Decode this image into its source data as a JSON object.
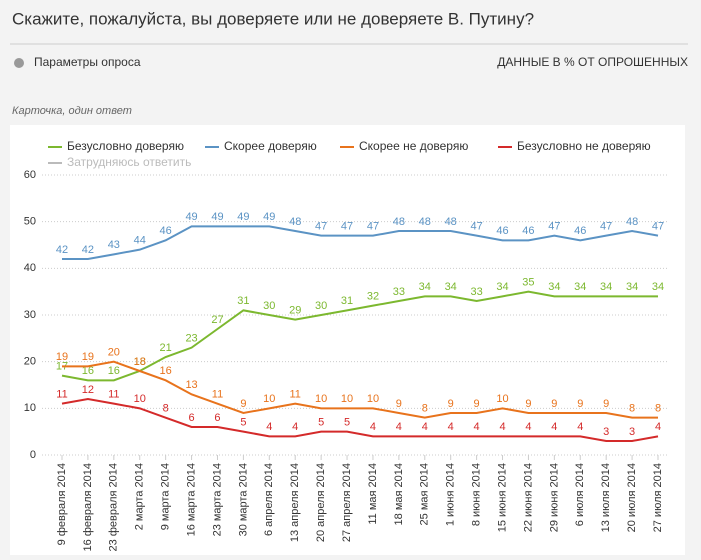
{
  "header": {
    "title": "Скажите, пожалуйста, вы доверяете или не доверяете В. Путину?",
    "params": "Параметры опроса",
    "units": "ДАННЫЕ В % ОТ ОПРОШЕННЫХ",
    "note": "Карточка, один ответ"
  },
  "chart_data": {
    "type": "line",
    "categories": [
      "9 февраля 2014",
      "16 февраля 2014",
      "23 февраля 2014",
      "2 марта 2014",
      "9 марта 2014",
      "16 марта 2014",
      "23 марта 2014",
      "30 марта 2014",
      "6 апреля 2014",
      "13 апреля 2014",
      "20 апреля 2014",
      "27 апреля 2014",
      "11 мая 2014",
      "18 мая 2014",
      "25 мая 2014",
      "1 июня 2014",
      "8 июня 2014",
      "15 июня 2014",
      "22 июня 2014",
      "29 июня 2014",
      "6 июля 2014",
      "13 июля 2014",
      "20 июля 2014",
      "27 июля 2014"
    ],
    "series": [
      {
        "name": "Безусловно доверяю",
        "color": "#7cb82f",
        "values": [
          17,
          16,
          16,
          18,
          21,
          23,
          27,
          31,
          30,
          29,
          30,
          31,
          32,
          33,
          34,
          34,
          33,
          34,
          35,
          34,
          34,
          34,
          34,
          34
        ]
      },
      {
        "name": "Скорее доверяю",
        "color": "#5b93c4",
        "values": [
          42,
          42,
          43,
          44,
          46,
          49,
          49,
          49,
          49,
          48,
          47,
          47,
          47,
          48,
          48,
          48,
          47,
          46,
          46,
          47,
          46,
          47,
          48,
          47
        ]
      },
      {
        "name": "Скорее не доверяю",
        "color": "#e8731c",
        "values": [
          19,
          19,
          20,
          18,
          16,
          13,
          11,
          9,
          10,
          11,
          10,
          10,
          10,
          9,
          8,
          9,
          9,
          10,
          9,
          9,
          9,
          9,
          8,
          8
        ]
      },
      {
        "name": "Безусловно не доверяю",
        "color": "#d42a2a",
        "values": [
          11,
          12,
          11,
          10,
          8,
          6,
          6,
          5,
          4,
          4,
          5,
          5,
          4,
          4,
          4,
          4,
          4,
          4,
          4,
          4,
          4,
          3,
          3,
          4
        ]
      },
      {
        "name": "Затрудняюсь ответить",
        "color": "#bbbbbb",
        "values": [
          null,
          null,
          null,
          null,
          null,
          null,
          null,
          null,
          null,
          null,
          null,
          null,
          null,
          null,
          null,
          null,
          null,
          null,
          null,
          null,
          null,
          null,
          null,
          null
        ]
      }
    ],
    "ylim": [
      0,
      60
    ],
    "yticks": [
      0,
      10,
      20,
      30,
      40,
      50,
      60
    ],
    "grid": true,
    "data_labels": true
  }
}
